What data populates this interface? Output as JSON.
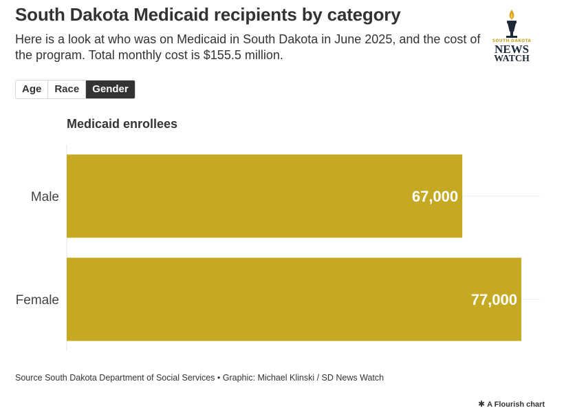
{
  "header": {
    "title": "South Dakota Medicaid recipients by category",
    "subtitle": "Here is a look at who was on Medicaid in South Dakota in June 2025, and the cost of the program. Total monthly cost is $155.5 million."
  },
  "logo": {
    "small_text": "SOUTH DAKOTA",
    "line1": "NEWS",
    "line2": "WATCH",
    "icon": "torch-icon"
  },
  "tabs": [
    {
      "label": "Age",
      "active": false
    },
    {
      "label": "Race",
      "active": false
    },
    {
      "label": "Gender",
      "active": true
    }
  ],
  "chart_data": {
    "type": "bar",
    "orientation": "horizontal",
    "title": "Medicaid enrollees",
    "categories": [
      "Male",
      "Female"
    ],
    "values": [
      67000,
      77000
    ],
    "value_labels": [
      "67,000",
      "77,000"
    ],
    "xlim": [
      0,
      77000
    ],
    "grid": true,
    "bar_color": "#c6a923"
  },
  "footer": {
    "source": "Source South Dakota Department of Social Services • Graphic: Michael Klinski / SD News Watch",
    "flourish": "A Flourish chart"
  }
}
